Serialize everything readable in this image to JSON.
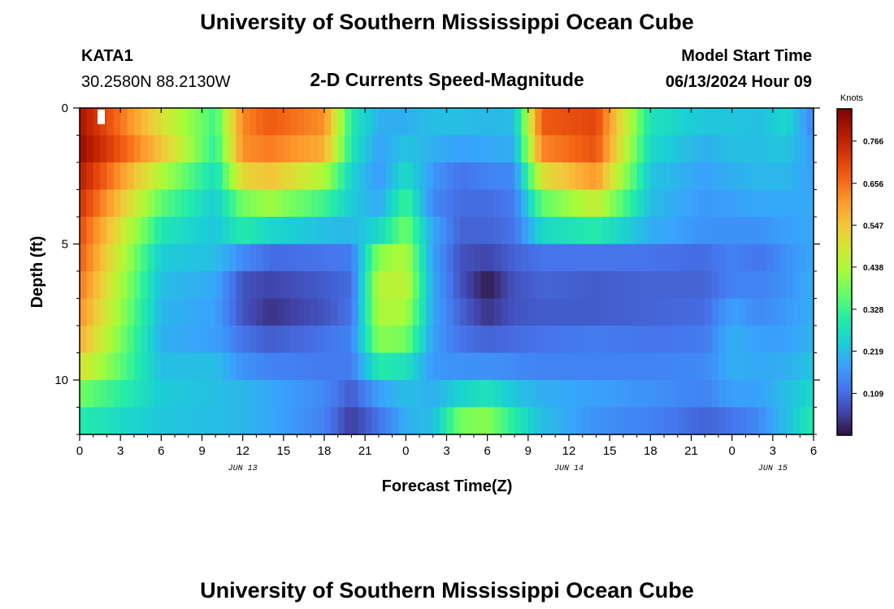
{
  "header": {
    "title": "University of Southern Mississippi Ocean Cube",
    "station_id": "KATA1",
    "coords": "30.2580N  88.2130W",
    "subtitle": "2-D Currents Speed-Magnitude",
    "model_start_label": "Model Start Time",
    "model_start_value": "06/13/2024 Hour 09"
  },
  "footer": {
    "title": "University of Southern Mississippi Ocean Cube"
  },
  "chart_data": {
    "type": "heatmap",
    "title": "2-D Currents Speed-Magnitude",
    "xlabel": "Forecast Time(Z)",
    "ylabel": "Depth (ft)",
    "x_unit": "hours",
    "x_range": [
      0,
      54
    ],
    "x_ticks": [
      {
        "hour": 0,
        "label": "0"
      },
      {
        "hour": 3,
        "label": "3"
      },
      {
        "hour": 6,
        "label": "6"
      },
      {
        "hour": 9,
        "label": "9"
      },
      {
        "hour": 12,
        "label": "12"
      },
      {
        "hour": 15,
        "label": "15"
      },
      {
        "hour": 18,
        "label": "18"
      },
      {
        "hour": 21,
        "label": "21"
      },
      {
        "hour": 24,
        "label": "0"
      },
      {
        "hour": 27,
        "label": "3"
      },
      {
        "hour": 30,
        "label": "6"
      },
      {
        "hour": 33,
        "label": "9"
      },
      {
        "hour": 36,
        "label": "12"
      },
      {
        "hour": 39,
        "label": "15"
      },
      {
        "hour": 42,
        "label": "18"
      },
      {
        "hour": 45,
        "label": "21"
      },
      {
        "hour": 48,
        "label": "0"
      },
      {
        "hour": 51,
        "label": "3"
      },
      {
        "hour": 54,
        "label": "6"
      }
    ],
    "date_labels": [
      {
        "hour": 12,
        "label": "JUN 13"
      },
      {
        "hour": 36,
        "label": "JUN 14"
      },
      {
        "hour": 51,
        "label": "JUN 15"
      }
    ],
    "y_range": [
      0,
      12
    ],
    "y_inverted": true,
    "y_ticks": [
      {
        "depth": 0,
        "label": "0"
      },
      {
        "depth": 5,
        "label": "5"
      },
      {
        "depth": 10,
        "label": "10"
      }
    ],
    "colorbar": {
      "unit": "Knots",
      "range": [
        0.0,
        0.85
      ],
      "ticks": [
        0.109,
        0.219,
        0.328,
        0.438,
        0.547,
        0.656,
        0.766
      ],
      "tick_labels": [
        "0.109",
        "0.219",
        "0.328",
        "0.438",
        "0.547",
        "0.656",
        "0.766"
      ],
      "colormap": [
        "#30123b",
        "#4145ab",
        "#4675ed",
        "#39a2fc",
        "#1bcfd4",
        "#24eca6",
        "#61fc6c",
        "#a4fc3b",
        "#d1e834",
        "#f3c63a",
        "#fe9b2d",
        "#f36315",
        "#d93806",
        "#b11901",
        "#7a0403"
      ]
    },
    "depth_levels_ft": [
      0.5,
      1.5,
      2.5,
      3.5,
      4.5,
      5.5,
      6.5,
      7.5,
      8.5,
      9.5,
      10.5,
      11.5
    ],
    "hours": [
      0,
      6,
      10,
      12,
      14,
      18,
      20,
      22,
      24,
      26,
      28,
      30,
      32,
      34,
      38,
      42,
      46,
      48,
      50,
      52,
      54
    ],
    "values": [
      [
        0.8,
        0.5,
        0.33,
        0.63,
        0.68,
        0.62,
        0.3,
        0.2,
        0.2,
        0.22,
        0.22,
        0.21,
        0.22,
        0.68,
        0.71,
        0.28,
        0.23,
        0.23,
        0.22,
        0.26,
        0.14
      ],
      [
        0.82,
        0.55,
        0.31,
        0.62,
        0.64,
        0.58,
        0.29,
        0.18,
        0.23,
        0.2,
        0.18,
        0.19,
        0.2,
        0.63,
        0.69,
        0.26,
        0.2,
        0.22,
        0.22,
        0.23,
        0.17
      ],
      [
        0.78,
        0.44,
        0.27,
        0.52,
        0.55,
        0.44,
        0.25,
        0.17,
        0.27,
        0.17,
        0.12,
        0.14,
        0.15,
        0.5,
        0.61,
        0.23,
        0.18,
        0.2,
        0.21,
        0.21,
        0.18
      ],
      [
        0.74,
        0.36,
        0.24,
        0.38,
        0.42,
        0.33,
        0.24,
        0.19,
        0.33,
        0.15,
        0.11,
        0.11,
        0.13,
        0.36,
        0.47,
        0.22,
        0.17,
        0.18,
        0.19,
        0.19,
        0.19
      ],
      [
        0.7,
        0.29,
        0.23,
        0.3,
        0.26,
        0.22,
        0.21,
        0.26,
        0.38,
        0.19,
        0.1,
        0.1,
        0.12,
        0.26,
        0.3,
        0.2,
        0.16,
        0.16,
        0.16,
        0.18,
        0.19
      ],
      [
        0.68,
        0.24,
        0.22,
        0.15,
        0.11,
        0.12,
        0.13,
        0.4,
        0.44,
        0.18,
        0.08,
        0.06,
        0.1,
        0.12,
        0.12,
        0.12,
        0.11,
        0.14,
        0.12,
        0.16,
        0.19
      ],
      [
        0.65,
        0.22,
        0.19,
        0.08,
        0.06,
        0.09,
        0.11,
        0.45,
        0.46,
        0.19,
        0.08,
        0.01,
        0.08,
        0.1,
        0.09,
        0.1,
        0.1,
        0.14,
        0.14,
        0.16,
        0.2
      ],
      [
        0.62,
        0.21,
        0.18,
        0.08,
        0.04,
        0.08,
        0.12,
        0.44,
        0.43,
        0.19,
        0.1,
        0.04,
        0.08,
        0.09,
        0.09,
        0.1,
        0.11,
        0.18,
        0.15,
        0.17,
        0.2
      ],
      [
        0.58,
        0.2,
        0.18,
        0.12,
        0.09,
        0.12,
        0.14,
        0.4,
        0.38,
        0.18,
        0.12,
        0.1,
        0.11,
        0.12,
        0.13,
        0.12,
        0.13,
        0.2,
        0.18,
        0.18,
        0.21
      ],
      [
        0.5,
        0.22,
        0.22,
        0.16,
        0.14,
        0.13,
        0.13,
        0.3,
        0.28,
        0.17,
        0.16,
        0.16,
        0.15,
        0.14,
        0.14,
        0.14,
        0.15,
        0.2,
        0.19,
        0.2,
        0.23
      ],
      [
        0.38,
        0.24,
        0.22,
        0.21,
        0.19,
        0.15,
        0.09,
        0.18,
        0.22,
        0.2,
        0.25,
        0.28,
        0.23,
        0.2,
        0.18,
        0.16,
        0.14,
        0.18,
        0.18,
        0.22,
        0.26
      ],
      [
        0.3,
        0.23,
        0.22,
        0.21,
        0.19,
        0.14,
        0.05,
        0.12,
        0.2,
        0.22,
        0.38,
        0.4,
        0.3,
        0.22,
        0.16,
        0.14,
        0.1,
        0.12,
        0.15,
        0.22,
        0.3
      ]
    ]
  }
}
